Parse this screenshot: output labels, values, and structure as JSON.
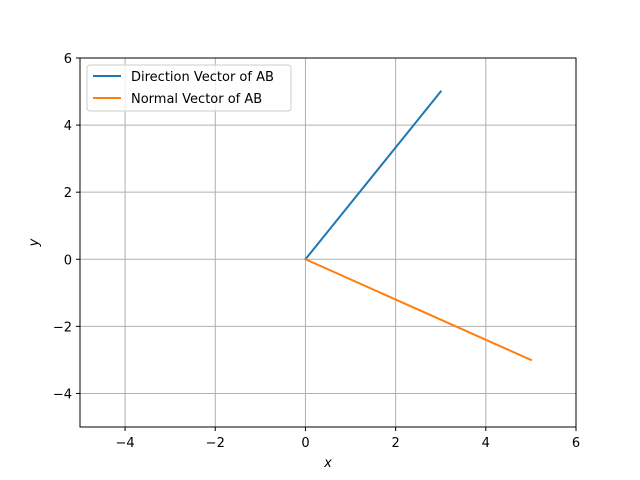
{
  "chart_data": {
    "type": "line",
    "title": "",
    "xlabel": "x",
    "ylabel": "y",
    "xlim": [
      -5,
      6
    ],
    "ylim": [
      -5,
      6
    ],
    "xticks": [
      -4,
      -2,
      0,
      2,
      4,
      6
    ],
    "yticks": [
      -4,
      -2,
      0,
      2,
      4,
      6
    ],
    "xtick_labels": [
      "−4",
      "−2",
      "0",
      "2",
      "4",
      "6"
    ],
    "ytick_labels": [
      "−4",
      "−2",
      "0",
      "2",
      "4",
      "6"
    ],
    "grid": true,
    "legend_position": "top-left",
    "series": [
      {
        "name": "Direction Vector of AB",
        "color": "#1f77b4",
        "x": [
          0,
          3
        ],
        "y": [
          0,
          5
        ]
      },
      {
        "name": "Normal Vector of AB",
        "color": "#ff7f0e",
        "x": [
          0,
          5
        ],
        "y": [
          0,
          -3
        ]
      }
    ]
  }
}
